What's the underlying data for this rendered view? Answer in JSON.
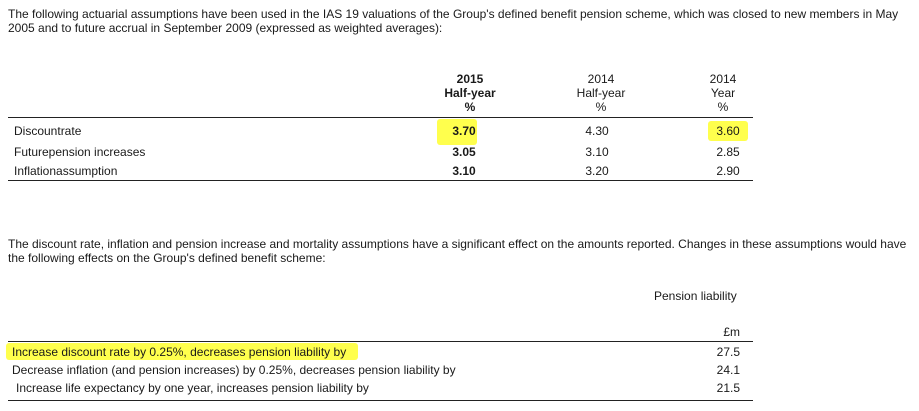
{
  "intro_text": "The following actuarial assumptions have been used in the IAS 19 valuations of the Group's defined benefit pension scheme, which was closed to new members in May 2005 and to future accrual in September 2009 (expressed as weighted averages):",
  "assumptions_table": {
    "columns": [
      {
        "line1": "2015",
        "line2": "Half-year",
        "line3": "%"
      },
      {
        "line1": "2014",
        "line2": "Half-year",
        "line3": "%"
      },
      {
        "line1": "2014",
        "line2": "Year",
        "line3": "%"
      }
    ],
    "rows": [
      {
        "label": "Discountrate",
        "values": [
          "3.70",
          "4.30",
          "3.60"
        ]
      },
      {
        "label": "Futurepension increases",
        "values": [
          "3.05",
          "3.10",
          "2.85"
        ]
      },
      {
        "label": "Inflationassumption",
        "values": [
          "3.10",
          "3.20",
          "2.90"
        ]
      }
    ]
  },
  "sensitivity_text": "The discount rate, inflation and pension increase and mortality assumptions have a significant effect on the amounts reported. Changes in these assumptions would have the following effects on the Group's defined benefit scheme:",
  "sensitivity_table": {
    "header": "Pension liability",
    "unit": "£m",
    "rows": [
      {
        "label": "Increase discount rate by 0.25%, decreases pension liability by",
        "value": "27.5"
      },
      {
        "label": "Decrease inflation (and pension increases) by 0.25%, decreases pension liability by",
        "value": "24.1"
      },
      {
        "label": "Increase life expectancy by one year, increases pension liability by",
        "value": "21.5"
      }
    ]
  },
  "highlight_color": "#ffff4d"
}
